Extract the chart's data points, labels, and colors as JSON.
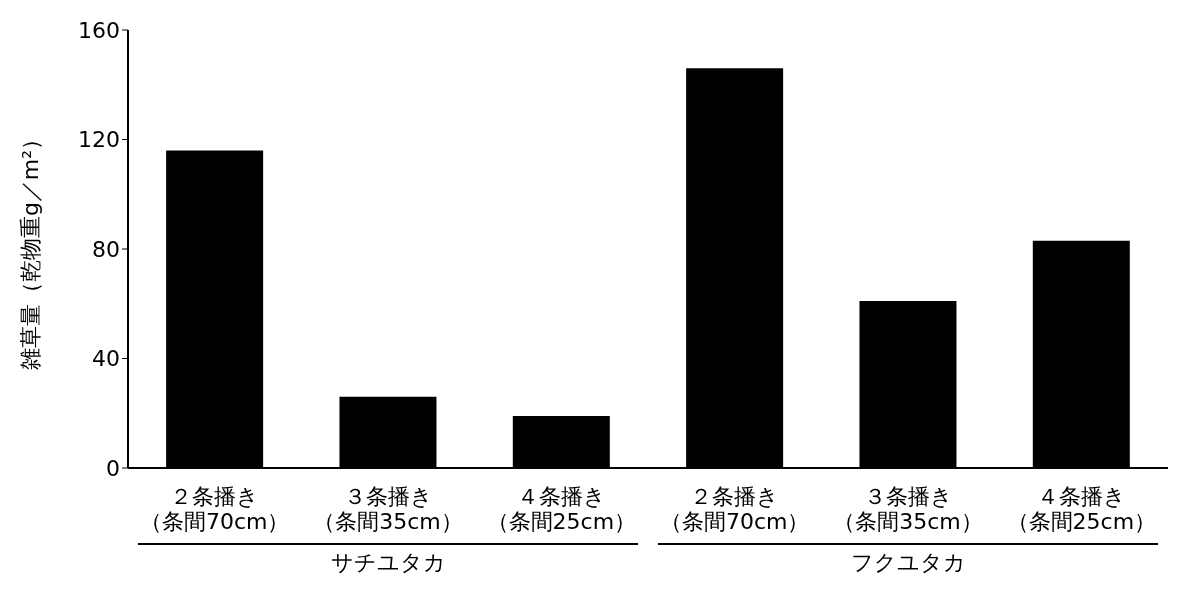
{
  "chart_data": {
    "type": "bar",
    "categories": [
      "２条播き（条間70cm）",
      "３条播き（条間35cm）",
      "４条播き（条間25cm）",
      "２条播き（条間70cm）",
      "３条播き（条間35cm）",
      "４条播き（条間25cm）"
    ],
    "values": [
      116,
      26,
      19,
      146,
      61,
      83
    ],
    "color": "#000000",
    "ylabel": "雑草量（乾物重g／m²）",
    "ylim": [
      0,
      160
    ],
    "yticks": [
      0,
      40,
      80,
      120,
      160
    ],
    "grid": false,
    "annotations": [
      "サチユタカ",
      "フクユタカ"
    ]
  }
}
